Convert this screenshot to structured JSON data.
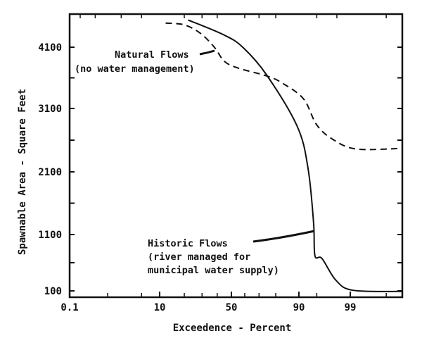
{
  "chart_data": {
    "type": "line",
    "title": "",
    "xlabel": "Exceedence - Percent",
    "ylabel": "Spawnable Area - Square Feet",
    "x_scale": "probability",
    "x_ticks": [
      "0.1",
      "10",
      "50",
      "90",
      "99"
    ],
    "y_ticks": [
      "100",
      "1100",
      "2100",
      "3100",
      "4100"
    ],
    "xlim": [
      0.1,
      99.97
    ],
    "ylim": [
      0,
      4800
    ],
    "grid": false,
    "series": [
      {
        "name": "Historic Flows",
        "style": "solid",
        "x": [
          22,
          45,
          59,
          75,
          89.5,
          92.9,
          94.3,
          94.6,
          96,
          97.9,
          99.15,
          99.97
        ],
        "y": [
          4550,
          4300,
          4090,
          3640,
          2810,
          2145,
          1280,
          725,
          675,
          290,
          110,
          90
        ]
      },
      {
        "name": "Natural Flows",
        "style": "dashed",
        "x": [
          12,
          20,
          29,
          38,
          45,
          55,
          75,
          83,
          91.5,
          95,
          97.6,
          99.3,
          99.97
        ],
        "y": [
          4500,
          4470,
          4330,
          4100,
          3870,
          3760,
          3630,
          3520,
          3260,
          2840,
          2610,
          2460,
          2470
        ]
      }
    ],
    "annotations": [
      {
        "series": "Natural Flows",
        "lines": [
          "Natural Flows",
          "(no water management)"
        ]
      },
      {
        "series": "Historic Flows",
        "lines": [
          "Historic Flows",
          "(river managed for",
          "municipal water supply)"
        ]
      }
    ]
  }
}
